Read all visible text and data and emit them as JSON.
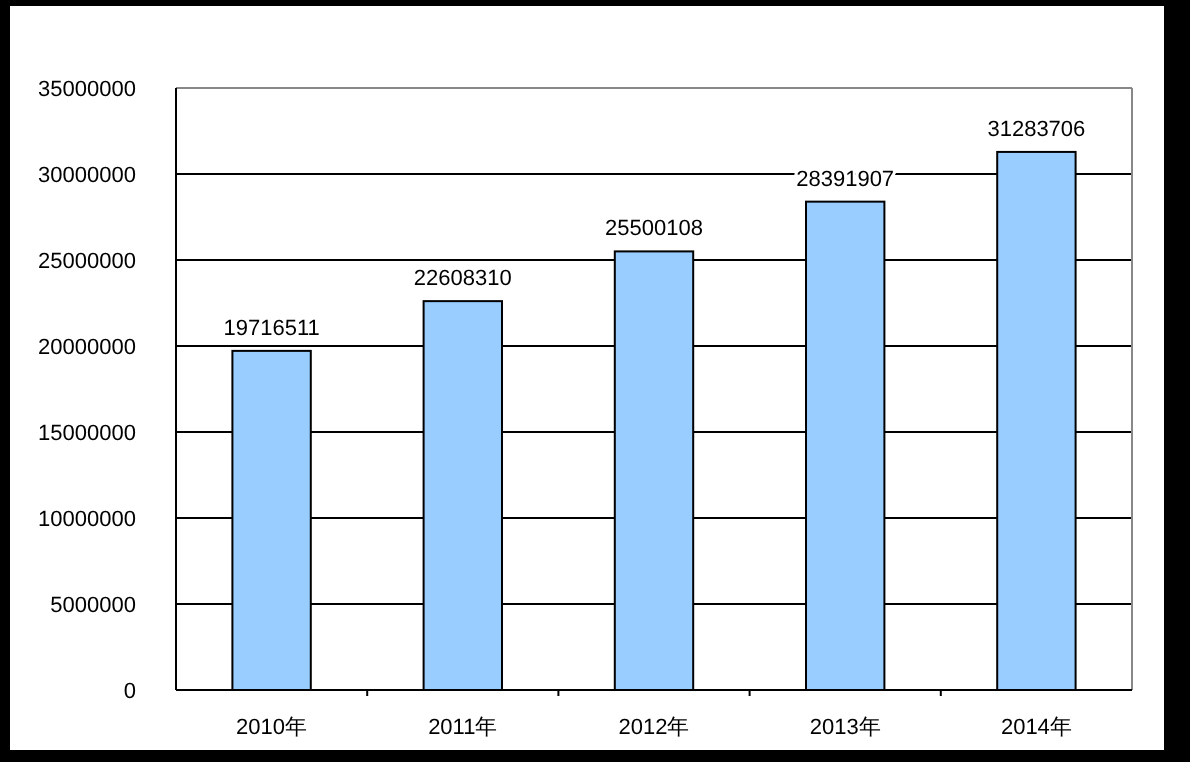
{
  "chart_data": {
    "type": "bar",
    "categories": [
      "2010年",
      "2011年",
      "2012年",
      "2013年",
      "2014年"
    ],
    "values": [
      19716511,
      22608310,
      25500108,
      28391907,
      31283706
    ],
    "color": "#99ccff",
    "ylim": [
      0,
      35000000
    ],
    "yticks": [
      0,
      5000000,
      10000000,
      15000000,
      20000000,
      25000000,
      30000000,
      35000000
    ],
    "grid": "y",
    "data_labels": true
  }
}
